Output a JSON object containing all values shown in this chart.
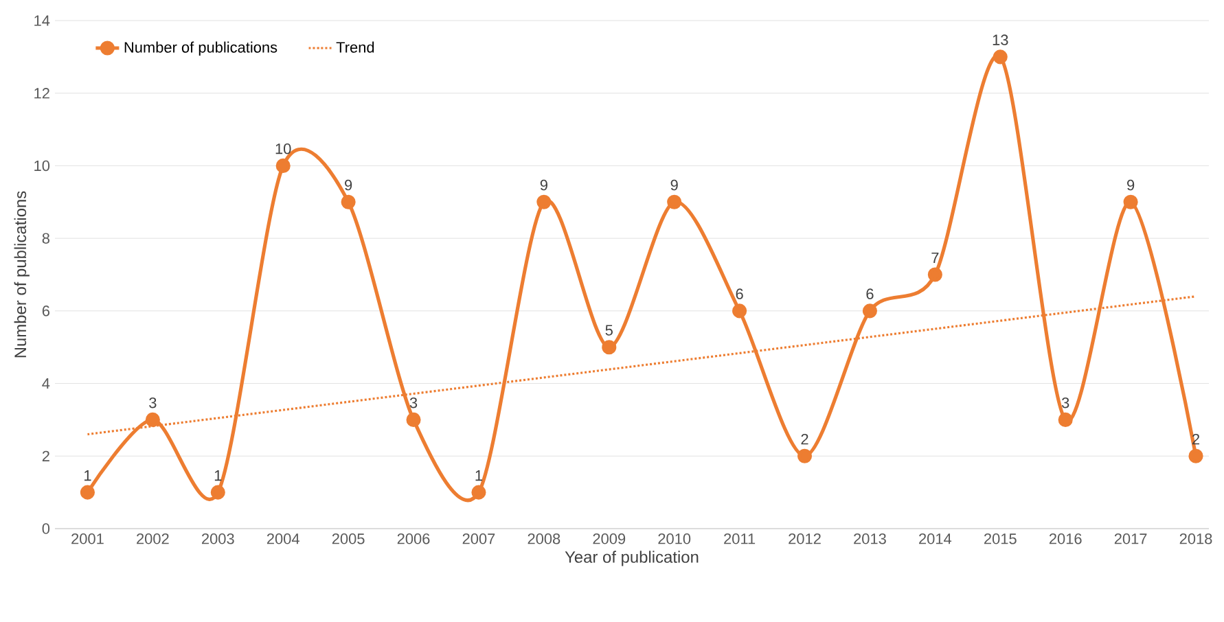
{
  "chart_data": {
    "type": "line",
    "xlabel": "Year of publication",
    "ylabel": "Number of publications",
    "x": [
      2001,
      2002,
      2003,
      2004,
      2005,
      2006,
      2007,
      2008,
      2009,
      2010,
      2011,
      2012,
      2013,
      2014,
      2015,
      2016,
      2017,
      2018
    ],
    "series": [
      {
        "name": "Number of publications",
        "color": "#ed7d31",
        "values": [
          1,
          3,
          1,
          10,
          9,
          3,
          1,
          9,
          5,
          9,
          6,
          2,
          6,
          7,
          13,
          3,
          9,
          2
        ],
        "marker": "circle",
        "line_style": "solid",
        "data_labels": true
      },
      {
        "name": "Trend",
        "type": "line",
        "color": "#ed7d31",
        "x": [
          2001,
          2018
        ],
        "values": [
          2.6,
          6.4
        ],
        "marker": "none",
        "line_style": "dotted"
      }
    ],
    "xlim": [
      2000.5,
      2018.2
    ],
    "xticks": [
      2001,
      2002,
      2003,
      2004,
      2005,
      2006,
      2007,
      2008,
      2009,
      2010,
      2011,
      2012,
      2013,
      2014,
      2015,
      2016,
      2017,
      2018
    ],
    "ylim": [
      0,
      14
    ],
    "yticks": [
      0,
      2,
      4,
      6,
      8,
      10,
      12,
      14
    ],
    "grid": "y",
    "legend": "top left"
  }
}
